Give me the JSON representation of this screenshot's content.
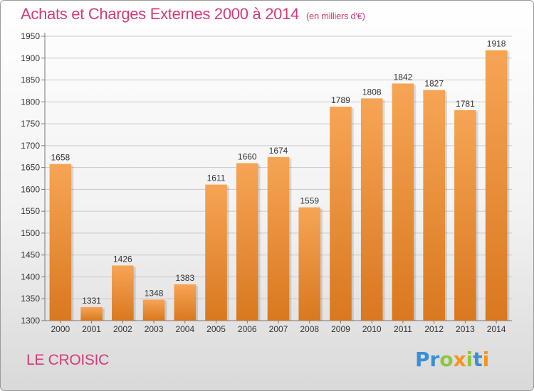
{
  "title": "Achats et Charges Externes 2000 à 2014",
  "unit_note": "(en milliers d'€)",
  "town": "LE CROISIC",
  "logo": {
    "text": "Proxiti",
    "letters": [
      {
        "ch": "P",
        "color": "#3a8fd6"
      },
      {
        "ch": "r",
        "color": "#3a8fd6"
      },
      {
        "ch": "o",
        "color": "#8dc63f"
      },
      {
        "ch": "x",
        "color": "#f7941d"
      },
      {
        "ch": "i",
        "color": "#8dc63f"
      },
      {
        "ch": "t",
        "color": "#3a8fd6"
      },
      {
        "ch": "i",
        "color": "#f7941d"
      }
    ]
  },
  "colors": {
    "bar_top": "#f6a555",
    "bar_bottom": "#d9781f",
    "title": "#d33b7a"
  },
  "chart_data": {
    "type": "bar",
    "categories": [
      "2000",
      "2001",
      "2002",
      "2003",
      "2004",
      "2005",
      "2006",
      "2007",
      "2008",
      "2009",
      "2010",
      "2011",
      "2012",
      "2013",
      "2014"
    ],
    "values": [
      1658,
      1331,
      1426,
      1348,
      1383,
      1611,
      1660,
      1674,
      1559,
      1789,
      1808,
      1842,
      1827,
      1781,
      1918
    ],
    "ylim": [
      1300,
      1950
    ],
    "yticks": [
      1300,
      1350,
      1400,
      1450,
      1500,
      1550,
      1600,
      1650,
      1700,
      1750,
      1800,
      1850,
      1900,
      1950
    ],
    "grid": true
  }
}
